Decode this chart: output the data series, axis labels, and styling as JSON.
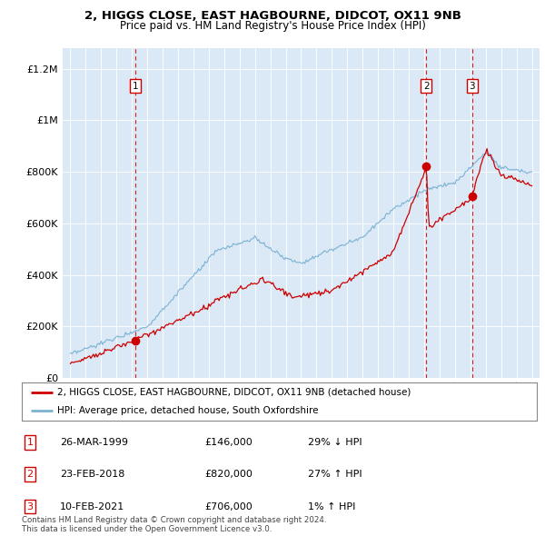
{
  "title_line1": "2, HIGGS CLOSE, EAST HAGBOURNE, DIDCOT, OX11 9NB",
  "title_line2": "Price paid vs. HM Land Registry's House Price Index (HPI)",
  "hpi_color": "#7ab3d4",
  "price_color": "#cc0000",
  "bg_color": "#dbe8f5",
  "transactions": [
    {
      "num": 1,
      "date_label": "26-MAR-1999",
      "price": 146000,
      "hpi_diff": "29% ↓ HPI",
      "x": 1999.23
    },
    {
      "num": 2,
      "date_label": "23-FEB-2018",
      "price": 820000,
      "hpi_diff": "27% ↑ HPI",
      "x": 2018.14
    },
    {
      "num": 3,
      "date_label": "10-FEB-2021",
      "price": 706000,
      "hpi_diff": "1% ↑ HPI",
      "x": 2021.11
    }
  ],
  "legend_line1": "2, HIGGS CLOSE, EAST HAGBOURNE, DIDCOT, OX11 9NB (detached house)",
  "legend_line2": "HPI: Average price, detached house, South Oxfordshire",
  "footnote": "Contains HM Land Registry data © Crown copyright and database right 2024.\nThis data is licensed under the Open Government Licence v3.0.",
  "ylim": [
    0,
    1280000
  ],
  "xlim": [
    1994.5,
    2025.5
  ]
}
